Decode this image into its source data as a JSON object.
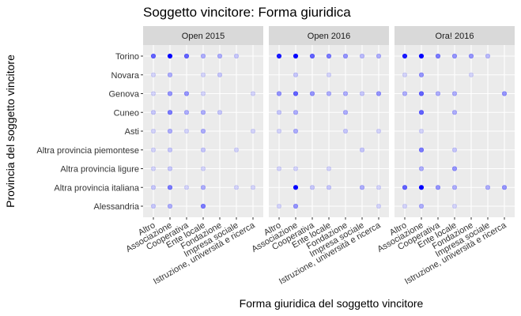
{
  "chart_data": {
    "type": "scatter",
    "title": "Soggetto vincitore: Forma giuridica",
    "xlabel": "Forma giuridica del soggetto vincitore",
    "ylabel": "Provincia del soggetto vincitore",
    "x_categories": [
      "Altro",
      "Associazione",
      "Cooperativa",
      "Ente locale",
      "Fondazione",
      "Impresa sociale",
      "Istruzione, università e ricerca"
    ],
    "y_categories": [
      "Alessandria",
      "Altra provincia italiana",
      "Altra provincia ligure",
      "Altra provincia piemontese",
      "Asti",
      "Cuneo",
      "Genova",
      "Novara",
      "Torino"
    ],
    "point_color": "#0000ff",
    "panel_background": "#ebebeb",
    "strip_background": "#d9d9d9",
    "grid": true,
    "panels": [
      {
        "label": "Open 2015",
        "points": [
          {
            "x": "Altro",
            "y": "Torino",
            "opacity": 0.6
          },
          {
            "x": "Associazione",
            "y": "Torino",
            "opacity": 1.0
          },
          {
            "x": "Cooperativa",
            "y": "Torino",
            "opacity": 0.6
          },
          {
            "x": "Ente locale",
            "y": "Torino",
            "opacity": 0.3
          },
          {
            "x": "Fondazione",
            "y": "Torino",
            "opacity": 0.3
          },
          {
            "x": "Impresa sociale",
            "y": "Torino",
            "opacity": 0.2
          },
          {
            "x": "Altro",
            "y": "Novara",
            "opacity": 0.15
          },
          {
            "x": "Associazione",
            "y": "Novara",
            "opacity": 0.3
          },
          {
            "x": "Ente locale",
            "y": "Novara",
            "opacity": 0.15
          },
          {
            "x": "Fondazione",
            "y": "Novara",
            "opacity": 0.2
          },
          {
            "x": "Altro",
            "y": "Genova",
            "opacity": 0.15
          },
          {
            "x": "Associazione",
            "y": "Genova",
            "opacity": 0.4
          },
          {
            "x": "Cooperativa",
            "y": "Genova",
            "opacity": 0.4
          },
          {
            "x": "Ente locale",
            "y": "Genova",
            "opacity": 0.15
          },
          {
            "x": "Istruzione, università e ricerca",
            "y": "Genova",
            "opacity": 0.15
          },
          {
            "x": "Altro",
            "y": "Cuneo",
            "opacity": 0.2
          },
          {
            "x": "Associazione",
            "y": "Cuneo",
            "opacity": 0.5
          },
          {
            "x": "Cooperativa",
            "y": "Cuneo",
            "opacity": 0.3
          },
          {
            "x": "Ente locale",
            "y": "Cuneo",
            "opacity": 0.3
          },
          {
            "x": "Fondazione",
            "y": "Cuneo",
            "opacity": 0.2
          },
          {
            "x": "Altro",
            "y": "Asti",
            "opacity": 0.15
          },
          {
            "x": "Associazione",
            "y": "Asti",
            "opacity": 0.3
          },
          {
            "x": "Cooperativa",
            "y": "Asti",
            "opacity": 0.15
          },
          {
            "x": "Ente locale",
            "y": "Asti",
            "opacity": 0.3
          },
          {
            "x": "Istruzione, università e ricerca",
            "y": "Asti",
            "opacity": 0.15
          },
          {
            "x": "Altro",
            "y": "Altra provincia piemontese",
            "opacity": 0.15
          },
          {
            "x": "Associazione",
            "y": "Altra provincia piemontese",
            "opacity": 0.2
          },
          {
            "x": "Ente locale",
            "y": "Altra provincia piemontese",
            "opacity": 0.2
          },
          {
            "x": "Impresa sociale",
            "y": "Altra provincia piemontese",
            "opacity": 0.15
          },
          {
            "x": "Altro",
            "y": "Altra provincia ligure",
            "opacity": 0.15
          },
          {
            "x": "Associazione",
            "y": "Altra provincia ligure",
            "opacity": 0.2
          },
          {
            "x": "Ente locale",
            "y": "Altra provincia ligure",
            "opacity": 0.15
          },
          {
            "x": "Altro",
            "y": "Altra provincia italiana",
            "opacity": 0.2
          },
          {
            "x": "Associazione",
            "y": "Altra provincia italiana",
            "opacity": 0.5
          },
          {
            "x": "Cooperativa",
            "y": "Altra provincia italiana",
            "opacity": 0.15
          },
          {
            "x": "Ente locale",
            "y": "Altra provincia italiana",
            "opacity": 0.3
          },
          {
            "x": "Impresa sociale",
            "y": "Altra provincia italiana",
            "opacity": 0.15
          },
          {
            "x": "Istruzione, università e ricerca",
            "y": "Altra provincia italiana",
            "opacity": 0.15
          },
          {
            "x": "Altro",
            "y": "Alessandria",
            "opacity": 0.2
          },
          {
            "x": "Associazione",
            "y": "Alessandria",
            "opacity": 0.3
          },
          {
            "x": "Ente locale",
            "y": "Alessandria",
            "opacity": 0.5
          }
        ]
      },
      {
        "label": "Open 2016",
        "points": [
          {
            "x": "Altro",
            "y": "Torino",
            "opacity": 0.9
          },
          {
            "x": "Associazione",
            "y": "Torino",
            "opacity": 1.0
          },
          {
            "x": "Cooperativa",
            "y": "Torino",
            "opacity": 0.6
          },
          {
            "x": "Ente locale",
            "y": "Torino",
            "opacity": 0.5
          },
          {
            "x": "Fondazione",
            "y": "Torino",
            "opacity": 0.4
          },
          {
            "x": "Impresa sociale",
            "y": "Torino",
            "opacity": 0.25
          },
          {
            "x": "Istruzione, università e ricerca",
            "y": "Torino",
            "opacity": 0.3
          },
          {
            "x": "Associazione",
            "y": "Novara",
            "opacity": 0.2
          },
          {
            "x": "Ente locale",
            "y": "Novara",
            "opacity": 0.15
          },
          {
            "x": "Altro",
            "y": "Genova",
            "opacity": 0.4
          },
          {
            "x": "Associazione",
            "y": "Genova",
            "opacity": 0.6
          },
          {
            "x": "Cooperativa",
            "y": "Genova",
            "opacity": 0.4
          },
          {
            "x": "Ente locale",
            "y": "Genova",
            "opacity": 0.3
          },
          {
            "x": "Fondazione",
            "y": "Genova",
            "opacity": 0.3
          },
          {
            "x": "Impresa sociale",
            "y": "Genova",
            "opacity": 0.2
          },
          {
            "x": "Istruzione, università e ricerca",
            "y": "Genova",
            "opacity": 0.4
          },
          {
            "x": "Altro",
            "y": "Cuneo",
            "opacity": 0.2
          },
          {
            "x": "Associazione",
            "y": "Cuneo",
            "opacity": 0.3
          },
          {
            "x": "Fondazione",
            "y": "Cuneo",
            "opacity": 0.3
          },
          {
            "x": "Altro",
            "y": "Asti",
            "opacity": 0.15
          },
          {
            "x": "Associazione",
            "y": "Asti",
            "opacity": 0.3
          },
          {
            "x": "Fondazione",
            "y": "Asti",
            "opacity": 0.2
          },
          {
            "x": "Istruzione, università e ricerca",
            "y": "Asti",
            "opacity": 0.15
          },
          {
            "x": "Impresa sociale",
            "y": "Altra provincia piemontese",
            "opacity": 0.2
          },
          {
            "x": "Altro",
            "y": "Altra provincia ligure",
            "opacity": 0.15
          },
          {
            "x": "Associazione",
            "y": "Altra provincia ligure",
            "opacity": 0.15
          },
          {
            "x": "Ente locale",
            "y": "Altra provincia ligure",
            "opacity": 0.15
          },
          {
            "x": "Associazione",
            "y": "Altra provincia italiana",
            "opacity": 1.0
          },
          {
            "x": "Cooperativa",
            "y": "Altra provincia italiana",
            "opacity": 0.2
          },
          {
            "x": "Ente locale",
            "y": "Altra provincia italiana",
            "opacity": 0.2
          },
          {
            "x": "Impresa sociale",
            "y": "Altra provincia italiana",
            "opacity": 0.3
          },
          {
            "x": "Istruzione, università e ricerca",
            "y": "Altra provincia italiana",
            "opacity": 0.15
          },
          {
            "x": "Altro",
            "y": "Alessandria",
            "opacity": 0.15
          },
          {
            "x": "Associazione",
            "y": "Alessandria",
            "opacity": 0.4
          },
          {
            "x": "Istruzione, università e ricerca",
            "y": "Alessandria",
            "opacity": 0.15
          }
        ]
      },
      {
        "label": "Ora! 2016",
        "points": [
          {
            "x": "Altro",
            "y": "Torino",
            "opacity": 0.9
          },
          {
            "x": "Associazione",
            "y": "Torino",
            "opacity": 1.0
          },
          {
            "x": "Cooperativa",
            "y": "Torino",
            "opacity": 0.5
          },
          {
            "x": "Ente locale",
            "y": "Torino",
            "opacity": 0.4
          },
          {
            "x": "Fondazione",
            "y": "Torino",
            "opacity": 0.4
          },
          {
            "x": "Impresa sociale",
            "y": "Torino",
            "opacity": 0.25
          },
          {
            "x": "Altro",
            "y": "Novara",
            "opacity": 0.15
          },
          {
            "x": "Associazione",
            "y": "Novara",
            "opacity": 0.4
          },
          {
            "x": "Fondazione",
            "y": "Novara",
            "opacity": 0.15
          },
          {
            "x": "Altro",
            "y": "Genova",
            "opacity": 0.3
          },
          {
            "x": "Associazione",
            "y": "Genova",
            "opacity": 0.6
          },
          {
            "x": "Cooperativa",
            "y": "Genova",
            "opacity": 0.3
          },
          {
            "x": "Ente locale",
            "y": "Genova",
            "opacity": 0.3
          },
          {
            "x": "Istruzione, università e ricerca",
            "y": "Genova",
            "opacity": 0.4
          },
          {
            "x": "Associazione",
            "y": "Cuneo",
            "opacity": 0.6
          },
          {
            "x": "Ente locale",
            "y": "Cuneo",
            "opacity": 0.3
          },
          {
            "x": "Associazione",
            "y": "Asti",
            "opacity": 0.15
          },
          {
            "x": "Associazione",
            "y": "Altra provincia piemontese",
            "opacity": 0.5
          },
          {
            "x": "Ente locale",
            "y": "Altra provincia piemontese",
            "opacity": 0.2
          },
          {
            "x": "Associazione",
            "y": "Altra provincia ligure",
            "opacity": 0.3
          },
          {
            "x": "Ente locale",
            "y": "Altra provincia ligure",
            "opacity": 0.4
          },
          {
            "x": "Altro",
            "y": "Altra provincia italiana",
            "opacity": 0.6
          },
          {
            "x": "Associazione",
            "y": "Altra provincia italiana",
            "opacity": 1.0
          },
          {
            "x": "Cooperativa",
            "y": "Altra provincia italiana",
            "opacity": 0.4
          },
          {
            "x": "Ente locale",
            "y": "Altra provincia italiana",
            "opacity": 0.3
          },
          {
            "x": "Impresa sociale",
            "y": "Altra provincia italiana",
            "opacity": 0.3
          },
          {
            "x": "Istruzione, università e ricerca",
            "y": "Altra provincia italiana",
            "opacity": 0.4
          },
          {
            "x": "Altro",
            "y": "Alessandria",
            "opacity": 0.15
          },
          {
            "x": "Associazione",
            "y": "Alessandria",
            "opacity": 0.3
          },
          {
            "x": "Ente locale",
            "y": "Alessandria",
            "opacity": 0.15
          }
        ]
      }
    ]
  }
}
